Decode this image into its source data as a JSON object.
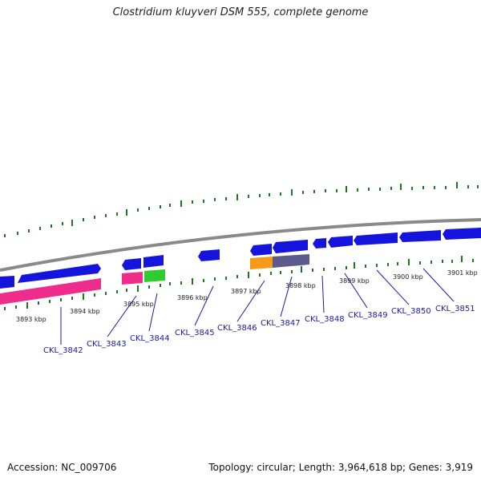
{
  "title": "Clostridium kluyveri DSM 555, complete genome",
  "footer": {
    "accession": "Accession: NC_009706",
    "topology": "Topology: circular; Length: 3,964,618 bp; Genes: 3,919"
  },
  "colors": {
    "cds_blue": "#1414dc",
    "rrna_magenta": "#ee2c8c",
    "trna_green": "#2ecc2e",
    "orange": "#f59a1a",
    "slate": "#5a5a8c",
    "backbone": "#8a8a8a",
    "tick_green": "#1a7a1a",
    "label_blue": "#1a1aa8"
  },
  "kbp_labels": [
    "3893 kbp",
    "3894 kbp",
    "3895 kbp",
    "3896 kbp",
    "3897 kbp",
    "3898 kbp",
    "3899 kbp",
    "3900 kbp",
    "3901 kbp"
  ],
  "gene_labels": [
    "CKL_3842",
    "CKL_3843",
    "CKL_3844",
    "CKL_3845",
    "CKL_3846",
    "CKL_3847",
    "CKL_3848",
    "CKL_3849",
    "CKL_3850",
    "CKL_3851"
  ]
}
